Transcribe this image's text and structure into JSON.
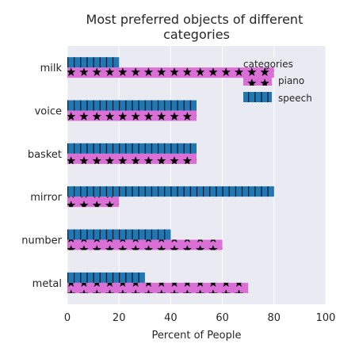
{
  "chart_data": {
    "type": "bar",
    "orientation": "horizontal",
    "title": "Most preferred objects of different categories",
    "xlabel": "Percent of People",
    "ylabel": "",
    "xlim": [
      0,
      100
    ],
    "xticks": [
      0,
      20,
      40,
      60,
      80,
      100
    ],
    "grid": true,
    "categories": [
      "metal",
      "number",
      "mirror",
      "basket",
      "voice",
      "milk"
    ],
    "series": [
      {
        "name": "piano",
        "color": "#da70d6",
        "hatch": "stars",
        "values": [
          70,
          60,
          20,
          50,
          50,
          80
        ]
      },
      {
        "name": "speech",
        "color": "#1f77b4",
        "hatch": "vertical-lines",
        "values": [
          30,
          40,
          80,
          50,
          50,
          20
        ]
      }
    ],
    "legend": {
      "title": "categories",
      "placement": "top-right"
    }
  }
}
